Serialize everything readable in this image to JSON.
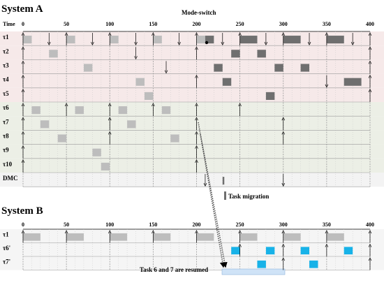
{
  "colors": {
    "band_a_top": "#f6e9e9",
    "band_a_bottom": "#ecefe6",
    "band_dmc": "#f3f3f3",
    "band_b": "#f5f5f5",
    "light_job": "#bdbdbd",
    "dark_job": "#6f6f6f",
    "resumed_job": "#17b2e8",
    "resume_highlight": "#cfe3f7"
  },
  "system_a": {
    "title": "System A",
    "axis_label": "Time",
    "ticks": [
      "0",
      "50",
      "100",
      "150",
      "200",
      "250",
      "300",
      "350",
      "400"
    ],
    "mode_switch_label": "Mode-switch",
    "rows": [
      "τ1",
      "τ2",
      "τ3",
      "τ4",
      "τ5",
      "τ6",
      "τ7",
      "τ8",
      "τ9",
      "τ10",
      "DMC"
    ],
    "migration_label": "Task migration"
  },
  "system_b": {
    "title": "System B",
    "ticks": [
      "0",
      "50",
      "100",
      "150",
      "200",
      "250",
      "300",
      "350",
      "400"
    ],
    "rows": [
      "τ1",
      "τ6'",
      "τ7'"
    ],
    "resumed_label": "Task 6 and 7 are resumed"
  },
  "jobs_a": [
    {
      "row": 0,
      "start": 0,
      "end": 10,
      "shade": "light"
    },
    {
      "row": 0,
      "start": 50,
      "end": 60,
      "shade": "light"
    },
    {
      "row": 0,
      "start": 100,
      "end": 110,
      "shade": "light"
    },
    {
      "row": 0,
      "start": 150,
      "end": 160,
      "shade": "light"
    },
    {
      "row": 0,
      "start": 200,
      "end": 210,
      "shade": "light"
    },
    {
      "row": 0,
      "start": 210,
      "end": 220,
      "shade": "dark"
    },
    {
      "row": 0,
      "start": 250,
      "end": 270,
      "shade": "dark"
    },
    {
      "row": 0,
      "start": 300,
      "end": 320,
      "shade": "dark"
    },
    {
      "row": 0,
      "start": 350,
      "end": 370,
      "shade": "dark"
    },
    {
      "row": 1,
      "start": 30,
      "end": 40,
      "shade": "light"
    },
    {
      "row": 1,
      "start": 240,
      "end": 250,
      "shade": "dark"
    },
    {
      "row": 1,
      "start": 270,
      "end": 280,
      "shade": "dark"
    },
    {
      "row": 2,
      "start": 70,
      "end": 80,
      "shade": "light"
    },
    {
      "row": 2,
      "start": 220,
      "end": 230,
      "shade": "dark"
    },
    {
      "row": 2,
      "start": 290,
      "end": 300,
      "shade": "dark"
    },
    {
      "row": 2,
      "start": 320,
      "end": 330,
      "shade": "dark"
    },
    {
      "row": 3,
      "start": 130,
      "end": 140,
      "shade": "light"
    },
    {
      "row": 3,
      "start": 230,
      "end": 240,
      "shade": "dark"
    },
    {
      "row": 3,
      "start": 370,
      "end": 390,
      "shade": "dark"
    },
    {
      "row": 4,
      "start": 140,
      "end": 150,
      "shade": "light"
    },
    {
      "row": 4,
      "start": 280,
      "end": 290,
      "shade": "dark"
    },
    {
      "row": 5,
      "start": 10,
      "end": 20,
      "shade": "light"
    },
    {
      "row": 5,
      "start": 60,
      "end": 70,
      "shade": "light"
    },
    {
      "row": 5,
      "start": 110,
      "end": 120,
      "shade": "light"
    },
    {
      "row": 5,
      "start": 160,
      "end": 170,
      "shade": "light"
    },
    {
      "row": 6,
      "start": 20,
      "end": 30,
      "shade": "light"
    },
    {
      "row": 6,
      "start": 120,
      "end": 130,
      "shade": "light"
    },
    {
      "row": 7,
      "start": 40,
      "end": 50,
      "shade": "light"
    },
    {
      "row": 7,
      "start": 170,
      "end": 180,
      "shade": "light"
    },
    {
      "row": 8,
      "start": 80,
      "end": 90,
      "shade": "light"
    },
    {
      "row": 9,
      "start": 90,
      "end": 100,
      "shade": "light"
    },
    {
      "row": 10,
      "start": 230,
      "end": 232,
      "shade": "dark"
    }
  ],
  "jobs_b": [
    {
      "row": 0,
      "start": 0,
      "end": 20,
      "shade": "light"
    },
    {
      "row": 0,
      "start": 50,
      "end": 70,
      "shade": "light"
    },
    {
      "row": 0,
      "start": 100,
      "end": 120,
      "shade": "light"
    },
    {
      "row": 0,
      "start": 150,
      "end": 170,
      "shade": "light"
    },
    {
      "row": 0,
      "start": 200,
      "end": 220,
      "shade": "light"
    },
    {
      "row": 0,
      "start": 250,
      "end": 270,
      "shade": "light"
    },
    {
      "row": 0,
      "start": 300,
      "end": 320,
      "shade": "light"
    },
    {
      "row": 0,
      "start": 350,
      "end": 370,
      "shade": "light"
    },
    {
      "row": 1,
      "start": 240,
      "end": 250,
      "shade": "resumed"
    },
    {
      "row": 1,
      "start": 280,
      "end": 290,
      "shade": "resumed"
    },
    {
      "row": 1,
      "start": 320,
      "end": 330,
      "shade": "resumed"
    },
    {
      "row": 1,
      "start": 370,
      "end": 380,
      "shade": "resumed"
    },
    {
      "row": 2,
      "start": 270,
      "end": 280,
      "shade": "resumed"
    },
    {
      "row": 2,
      "start": 330,
      "end": 340,
      "shade": "resumed"
    }
  ],
  "releases_a": [
    {
      "row": 0,
      "times": [
        0,
        50,
        100,
        150,
        200,
        250,
        300,
        350,
        400
      ]
    },
    {
      "row": 1,
      "times": [
        0,
        200,
        400
      ]
    },
    {
      "row": 2,
      "times": [
        0,
        400
      ]
    },
    {
      "row": 3,
      "times": [
        0,
        200,
        400
      ]
    },
    {
      "row": 4,
      "times": [
        0,
        400
      ]
    },
    {
      "row": 5,
      "times": [
        0,
        50,
        100,
        150,
        200,
        250
      ]
    },
    {
      "row": 6,
      "times": [
        0,
        100,
        200,
        300
      ]
    },
    {
      "row": 7,
      "times": [
        0,
        100,
        200,
        300
      ]
    },
    {
      "row": 8,
      "times": [
        0,
        200
      ]
    },
    {
      "row": 9,
      "times": [
        0,
        200
      ]
    }
  ],
  "deadlines_a": [
    {
      "row": 0,
      "times": [
        30,
        80,
        130,
        180,
        230,
        280,
        330,
        380
      ]
    },
    {
      "row": 1,
      "times": [
        130
      ]
    },
    {
      "row": 2,
      "times": [
        165
      ]
    },
    {
      "row": 3,
      "times": [
        350
      ]
    },
    {
      "row": 10,
      "times": [
        210,
        300
      ]
    }
  ],
  "releases_b": [
    {
      "row": 0,
      "times": [
        0,
        50,
        100,
        150,
        200,
        250,
        300,
        350,
        400
      ]
    },
    {
      "row": 1,
      "times": [
        250,
        300,
        350,
        400
      ]
    },
    {
      "row": 2,
      "times": [
        300,
        400
      ]
    }
  ]
}
